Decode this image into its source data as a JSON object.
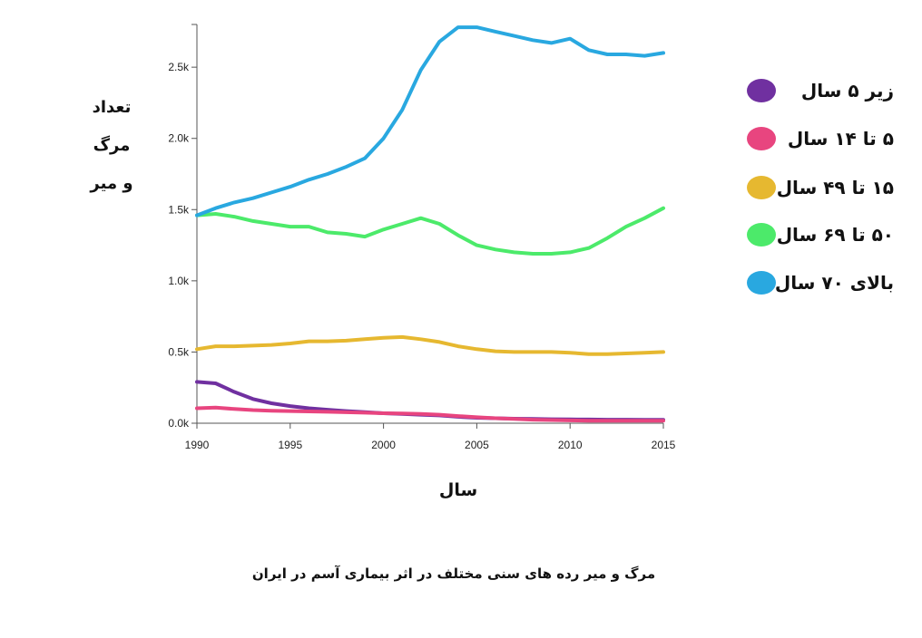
{
  "chart_data": {
    "type": "line",
    "title": "مرگ و میر رده های سنی مختلف در اثر بیماری آسم در ایران",
    "xlabel": "سال",
    "ylabel_lines": [
      "تعداد",
      "مرگ",
      "و میر"
    ],
    "xlim": [
      1990,
      2015
    ],
    "ylim": [
      0,
      2800
    ],
    "x_ticks": [
      1990,
      1995,
      2000,
      2005,
      2010,
      2015
    ],
    "x_tick_labels": [
      "1990",
      "1995",
      "2000",
      "2005",
      "2010",
      "2015"
    ],
    "y_ticks": [
      0,
      500,
      1000,
      1500,
      2000,
      2500
    ],
    "y_tick_labels": [
      "0.0k",
      "0.5k",
      "1.0k",
      "1.5k",
      "2.0k",
      "2.5k"
    ],
    "grid": false,
    "legend_position": "right",
    "x": [
      1990,
      1991,
      1992,
      1993,
      1994,
      1995,
      1996,
      1997,
      1998,
      1999,
      2000,
      2001,
      2002,
      2003,
      2004,
      2005,
      2006,
      2007,
      2008,
      2009,
      2010,
      2011,
      2012,
      2013,
      2014,
      2015
    ],
    "series": [
      {
        "name": "زیر ۵ سال",
        "color": "#7030a0",
        "values": [
          290,
          280,
          220,
          170,
          140,
          120,
          105,
          95,
          85,
          78,
          70,
          65,
          60,
          55,
          45,
          38,
          35,
          32,
          30,
          28,
          27,
          26,
          25,
          25,
          24,
          24
        ]
      },
      {
        "name": "۵ تا ۱۴ سال",
        "color": "#e8457f",
        "values": [
          105,
          110,
          100,
          92,
          88,
          85,
          83,
          80,
          77,
          74,
          70,
          68,
          65,
          60,
          50,
          42,
          35,
          30,
          25,
          22,
          20,
          18,
          18,
          17,
          17,
          17
        ]
      },
      {
        "name": "۱۵ تا ۴۹ سال",
        "color": "#e6b830",
        "values": [
          520,
          540,
          540,
          545,
          550,
          560,
          575,
          575,
          580,
          590,
          600,
          605,
          590,
          570,
          540,
          520,
          505,
          500,
          500,
          500,
          495,
          485,
          485,
          490,
          495,
          500
        ]
      },
      {
        "name": "۵۰ تا ۶۹ سال",
        "color": "#4cea6a",
        "values": [
          1460,
          1470,
          1450,
          1420,
          1400,
          1380,
          1380,
          1340,
          1330,
          1310,
          1360,
          1400,
          1440,
          1400,
          1320,
          1250,
          1220,
          1200,
          1190,
          1190,
          1200,
          1230,
          1300,
          1380,
          1440,
          1510
        ]
      },
      {
        "name": "بالای ۷۰ سال",
        "color": "#29a8e0",
        "values": [
          1460,
          1510,
          1550,
          1580,
          1620,
          1660,
          1710,
          1750,
          1800,
          1860,
          2000,
          2200,
          2480,
          2680,
          2780,
          2780,
          2750,
          2720,
          2690,
          2670,
          2700,
          2620,
          2590,
          2590,
          2580,
          2600
        ]
      }
    ]
  }
}
